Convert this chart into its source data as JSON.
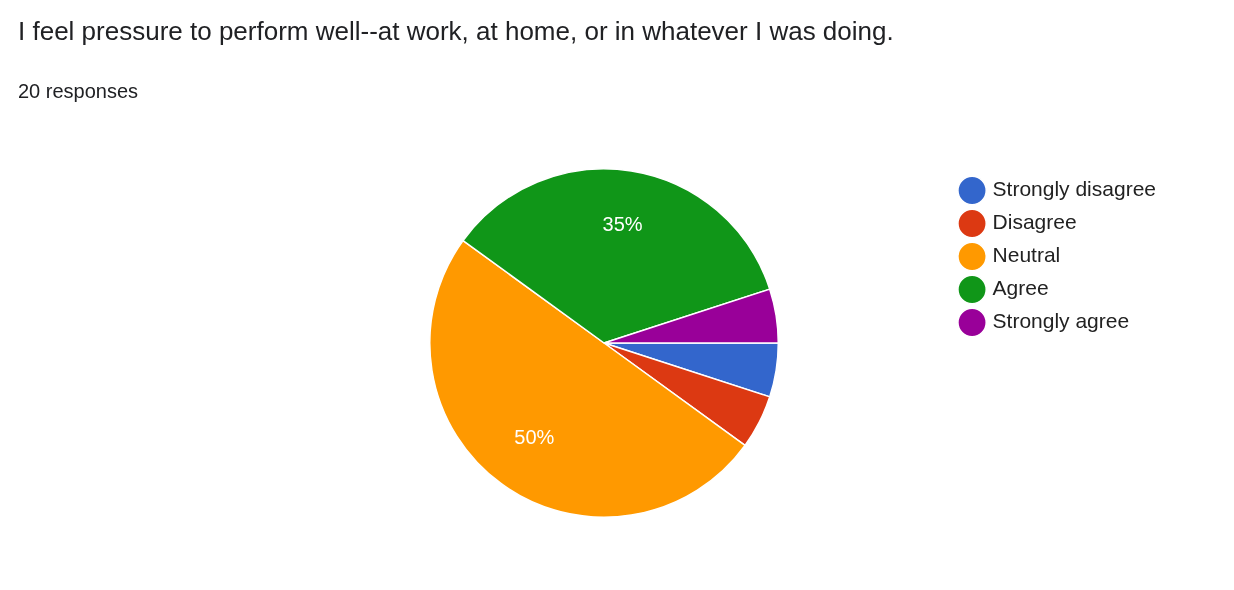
{
  "chart_data": {
    "type": "pie",
    "title": "I feel pressure to perform well--at work, at home, or in whatever I was doing.",
    "subtitle": "20 responses",
    "categories": [
      "Strongly disagree",
      "Disagree",
      "Neutral",
      "Agree",
      "Strongly agree"
    ],
    "values": [
      5,
      5,
      50,
      35,
      5
    ],
    "colors": [
      "#3366cc",
      "#dc3912",
      "#ff9900",
      "#109618",
      "#990099"
    ],
    "value_labels": [
      null,
      null,
      "50%",
      "35%",
      null
    ],
    "legend": "right"
  }
}
